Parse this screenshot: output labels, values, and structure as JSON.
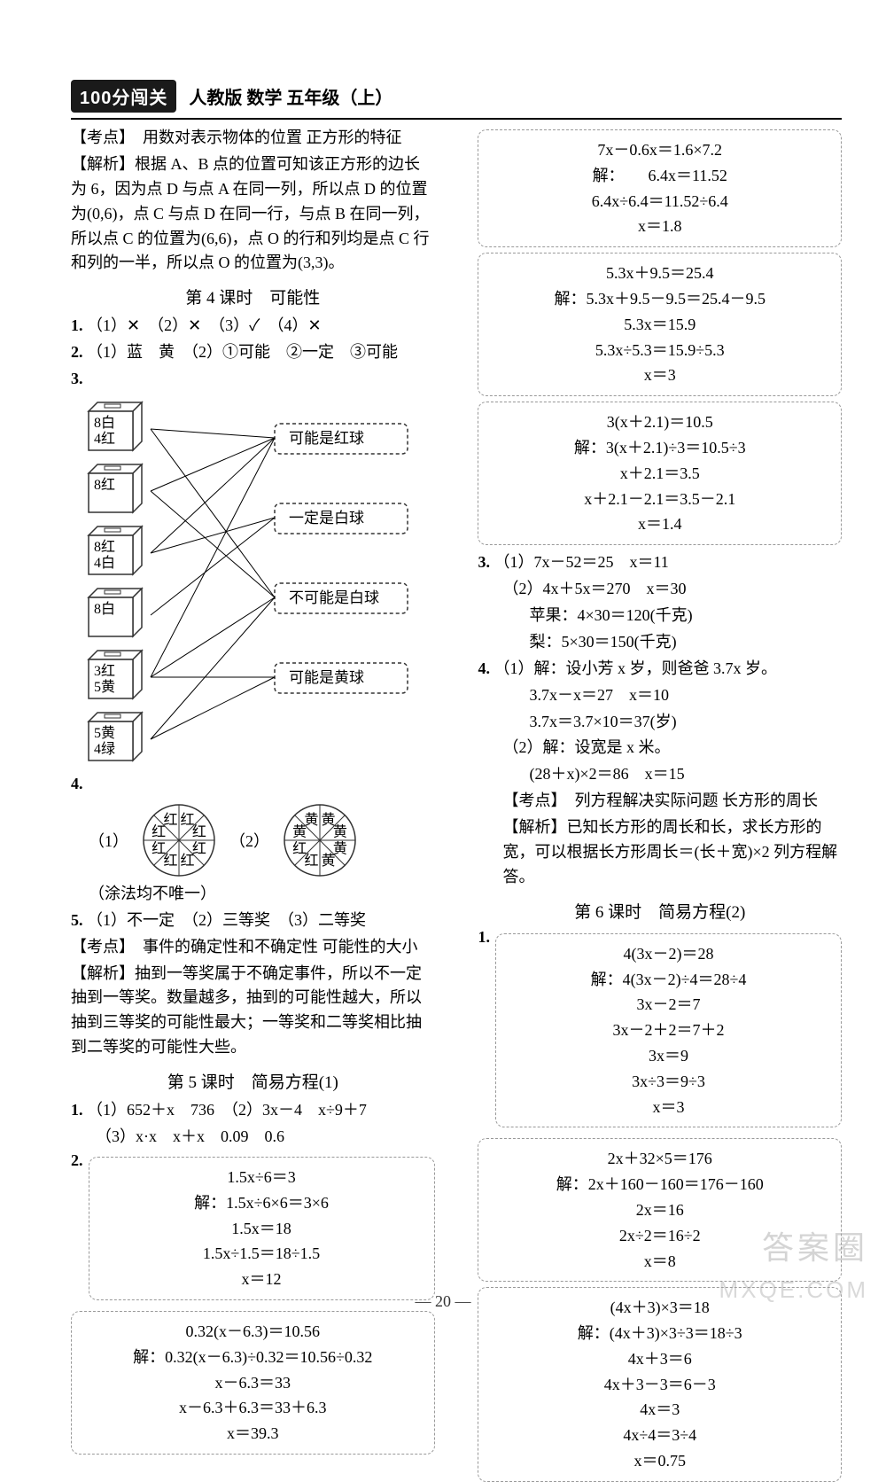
{
  "header": {
    "logo": "100分闯关",
    "title": "人教版 数学 五年级（上）"
  },
  "left": {
    "kaodian": "【考点】　用数对表示物体的位置 正方形的特征",
    "jiexi": "【解析】根据 A、B 点的位置可知该正方形的边长为 6，因为点 D 与点 A 在同一列，所以点 D 的位置为(0,6)，点 C 与点 D 在同一行，与点 B 在同一列，所以点 C 的位置为(6,6)，点 O 的行和列均是点 C 行和列的一半，所以点 O 的位置为(3,3)。",
    "sec4": "第 4 课时　可能性",
    "q1": "（1）✕　（2）✕　（3）✓　（4）✕",
    "q2": "（1）蓝　黄　（2）①可能　②一定　③可能",
    "q3_boxes": [
      "8白\n4红",
      "8红",
      "8红\n4白",
      "8白",
      "3红\n5黄",
      "5黄\n4绿"
    ],
    "q3_labels": [
      "可能是红球",
      "一定是白球",
      "不可能是白球",
      "可能是黄球"
    ],
    "q4_note": "（涂法均不唯一）",
    "q4_wheels": [
      {
        "label": "（1）",
        "colors": [
          "红",
          "红",
          "红",
          "红",
          "红",
          "红",
          "红",
          "红"
        ],
        "fontColor": "#c02020"
      },
      {
        "label": "（2）",
        "colors": [
          "黄",
          "黄",
          "黄",
          "黄",
          "红",
          "红",
          "黄",
          "黄"
        ],
        "fontColor": "#a08000"
      }
    ],
    "q5": "（1）不一定　（2）三等奖　（3）二等奖",
    "q5_kd": "【考点】　事件的确定性和不确定性 可能性的大小",
    "q5_jx": "【解析】抽到一等奖属于不确定事件，所以不一定抽到一等奖。数量越多，抽到的可能性越大，所以抽到三等奖的可能性最大；一等奖和二等奖相比抽到二等奖的可能性大些。",
    "sec5": "第 5 课时　简易方程(1)",
    "q1b": "（1）652＋x　736　（2）3x－4　x÷9＋7",
    "q1c": "（3）x·x　x＋x　0.09　0.6",
    "eqbox1": [
      "1.5x÷6＝3",
      "解：1.5x÷6×6＝3×6",
      "1.5x＝18",
      "1.5x÷1.5＝18÷1.5",
      "x＝12"
    ],
    "eqbox2": [
      "0.32(x－6.3)＝10.56",
      "解：0.32(x－6.3)÷0.32＝10.56÷0.32",
      "x－6.3＝33",
      "x－6.3＋6.3＝33＋6.3",
      "x＝39.3"
    ]
  },
  "right": {
    "eqbox1": [
      "7x－0.6x＝1.6×7.2",
      "解：　　6.4x＝11.52",
      "6.4x÷6.4＝11.52÷6.4",
      "x＝1.8"
    ],
    "eqbox2": [
      "5.3x＋9.5＝25.4",
      "解：5.3x＋9.5－9.5＝25.4－9.5",
      "5.3x＝15.9",
      "5.3x÷5.3＝15.9÷5.3",
      "x＝3"
    ],
    "eqbox3": [
      "3(x＋2.1)＝10.5",
      "解：3(x＋2.1)÷3＝10.5÷3",
      "x＋2.1＝3.5",
      "x＋2.1－2.1＝3.5－2.1",
      "x＝1.4"
    ],
    "q3a": "（1）7x－52＝25　x＝11",
    "q3b1": "（2）4x＋5x＝270　x＝30",
    "q3b2": "苹果：4×30＝120(千克)",
    "q3b3": "梨：5×30＝150(千克)",
    "q4a1": "（1）解：设小芳 x 岁，则爸爸 3.7x 岁。",
    "q4a2": "3.7x－x＝27　x＝10",
    "q4a3": "3.7x＝3.7×10＝37(岁)",
    "q4b1": "（2）解：设宽是 x 米。",
    "q4b2": "(28＋x)×2＝86　x＝15",
    "q4kd": "【考点】　列方程解决实际问题 长方形的周长",
    "q4jx": "【解析】已知长方形的周长和长，求长方形的宽，可以根据长方形周长＝(长＋宽)×2 列方程解答。",
    "sec6": "第 6 课时　简易方程(2)",
    "eqbox4": [
      "4(3x－2)＝28",
      "解：4(3x－2)÷4＝28÷4",
      "3x－2＝7",
      "3x－2＋2＝7＋2",
      "3x＝9",
      "3x÷3＝9÷3",
      "x＝3"
    ],
    "eqbox5": [
      "2x＋32×5＝176",
      "解：2x＋160－160＝176－160",
      "2x＝16",
      "2x÷2＝16÷2",
      "x＝8"
    ],
    "eqbox6": [
      "(4x＋3)×3＝18",
      "解：(4x＋3)×3÷3＝18÷3",
      "4x＋3＝6",
      "4x＋3－3＝6－3",
      "4x＝3",
      "4x÷4＝3÷4",
      "x＝0.75"
    ]
  },
  "footer": "— 20 —",
  "watermark1": "答案圈",
  "watermark2": "MXQE.COM"
}
